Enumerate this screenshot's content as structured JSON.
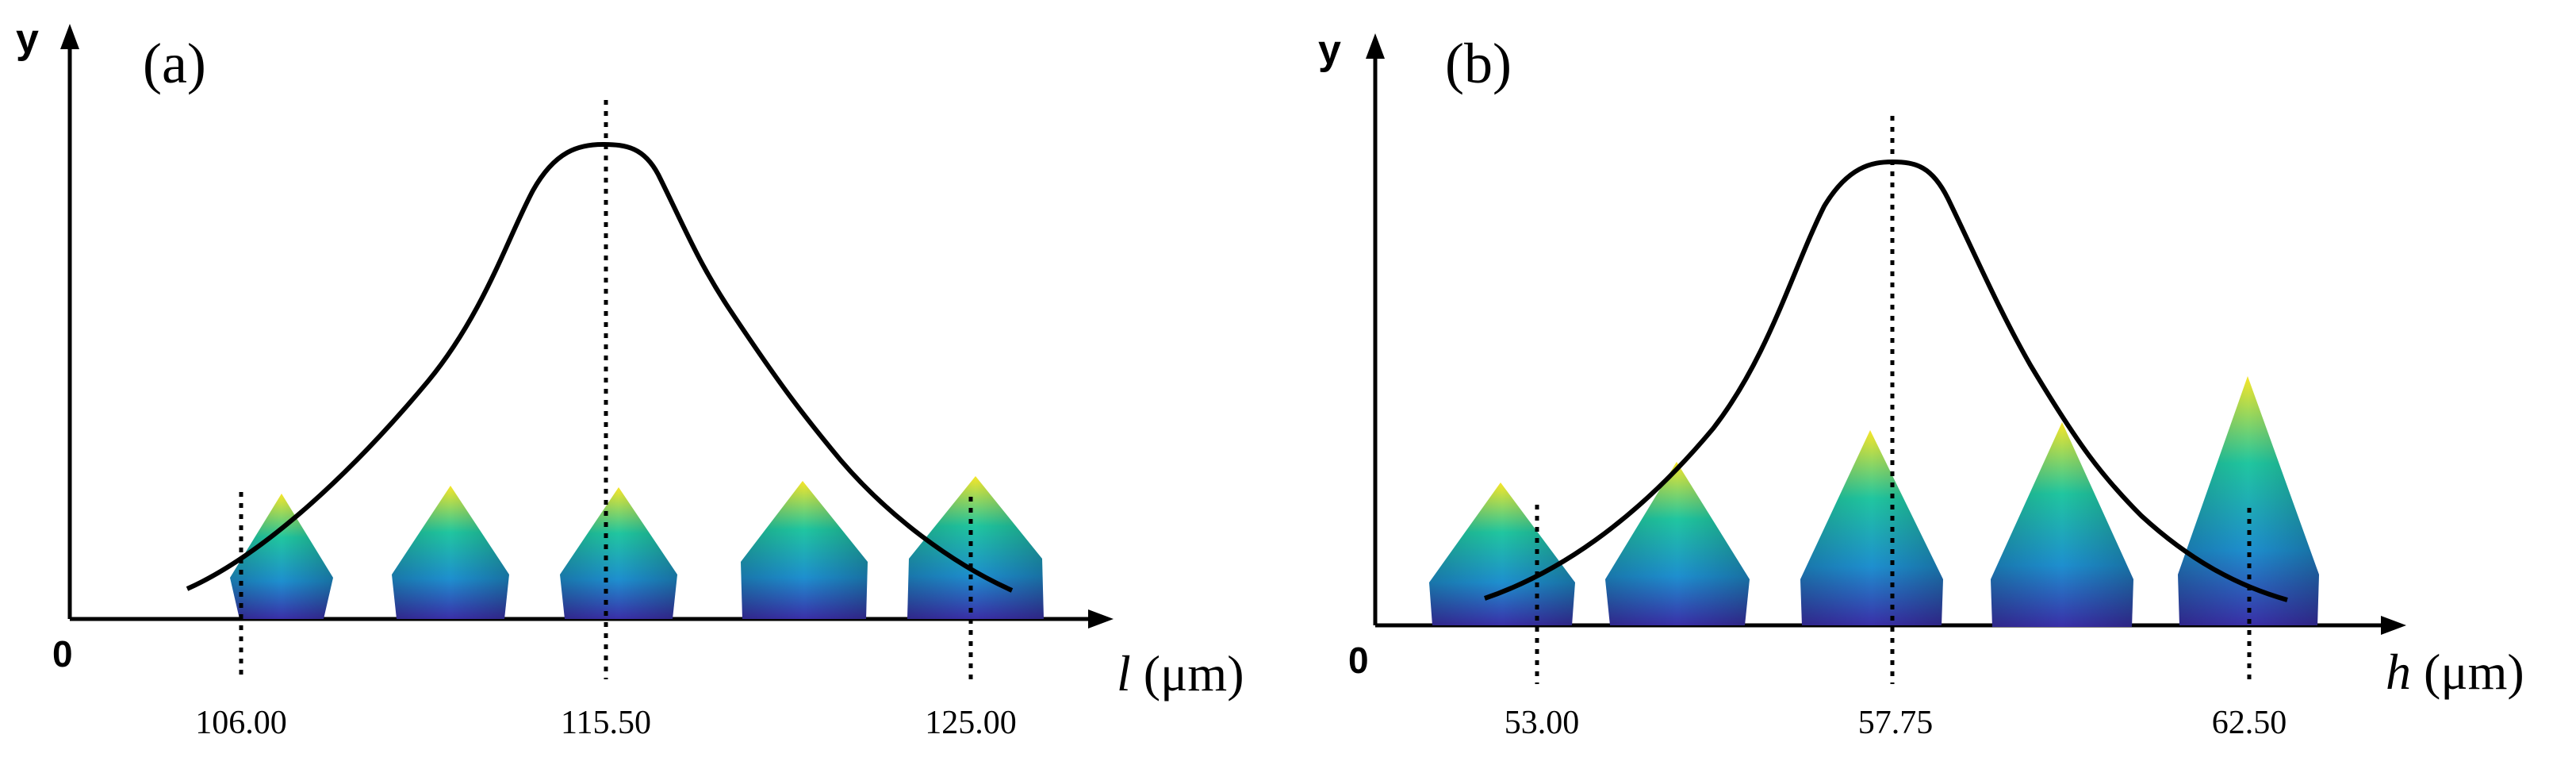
{
  "panel_a": {
    "label": "(a)",
    "y_label": "y",
    "origin": "0",
    "x_label_var": "l",
    "x_label_unit": " (μm)",
    "ticks": [
      "106.00",
      "115.50",
      "125.00"
    ]
  },
  "panel_b": {
    "label": "(b)",
    "y_label": "y",
    "origin": "0",
    "x_label_var": "h",
    "x_label_unit": " (μm)",
    "ticks": [
      "53.00",
      "57.75",
      "62.50"
    ]
  },
  "colors": {
    "gradient_top": "#f7e628",
    "gradient_mid": "#20c6a0",
    "gradient_bottom": "#3a2fa8"
  }
}
